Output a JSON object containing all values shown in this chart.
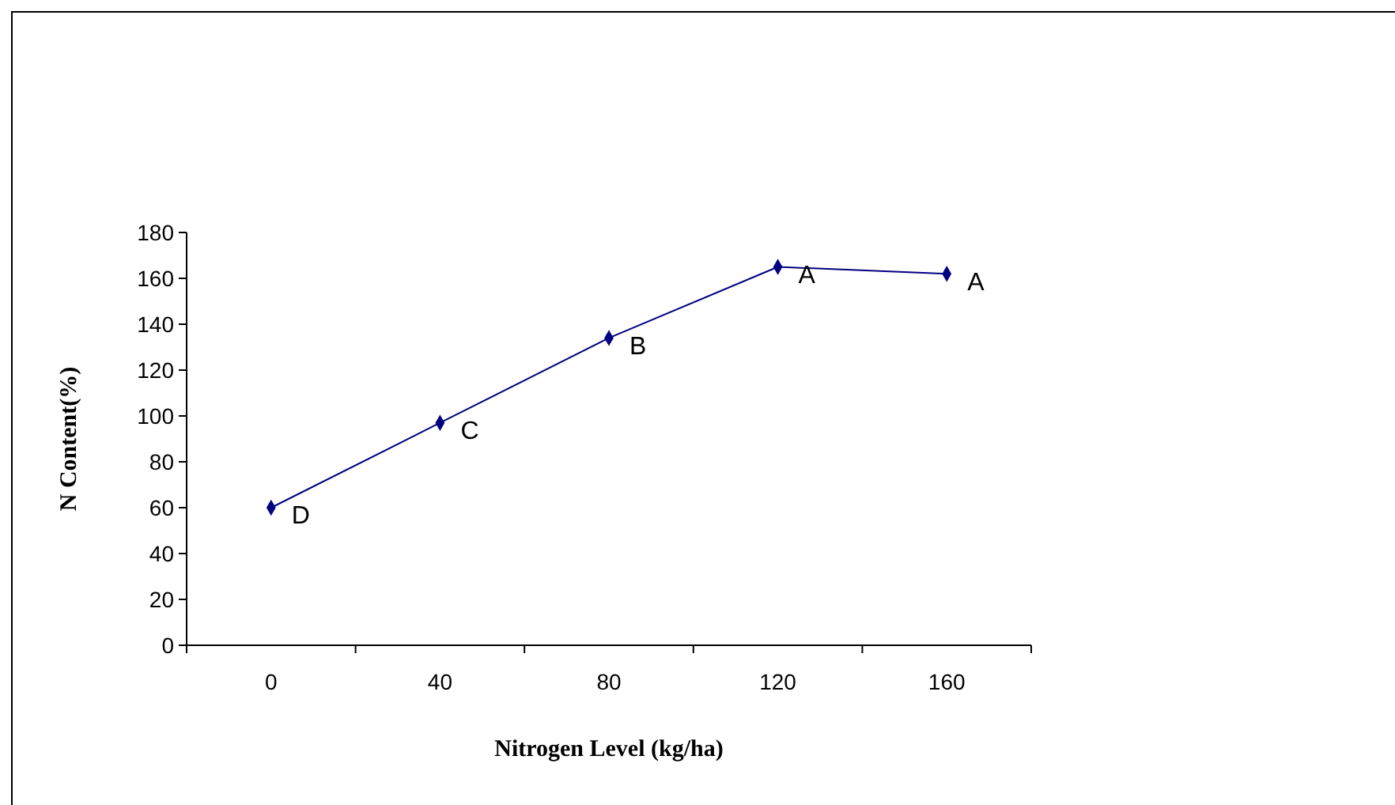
{
  "chart_data": {
    "type": "line",
    "xlabel": "Nitrogen Level (kg/ha)",
    "ylabel": "N Content(%)",
    "categories": [
      "0",
      "40",
      "80",
      "120",
      "160"
    ],
    "series": [
      {
        "color": "#000080",
        "values": [
          60,
          97,
          134,
          165,
          162
        ]
      }
    ],
    "ylim": [
      0,
      180
    ],
    "yticks": [
      0,
      20,
      40,
      60,
      80,
      100,
      120,
      140,
      160,
      180
    ],
    "marker": "diamond",
    "line_style": "solid",
    "grid": false,
    "annotations": [
      {
        "text": "D",
        "x": "0",
        "y": 60
      },
      {
        "text": "C",
        "x": "40",
        "y": 97
      },
      {
        "text": "B",
        "x": "80",
        "y": 134
      },
      {
        "text": "A",
        "x": "120",
        "y": 165
      },
      {
        "text": "A",
        "x": "160",
        "y": 162
      }
    ]
  }
}
